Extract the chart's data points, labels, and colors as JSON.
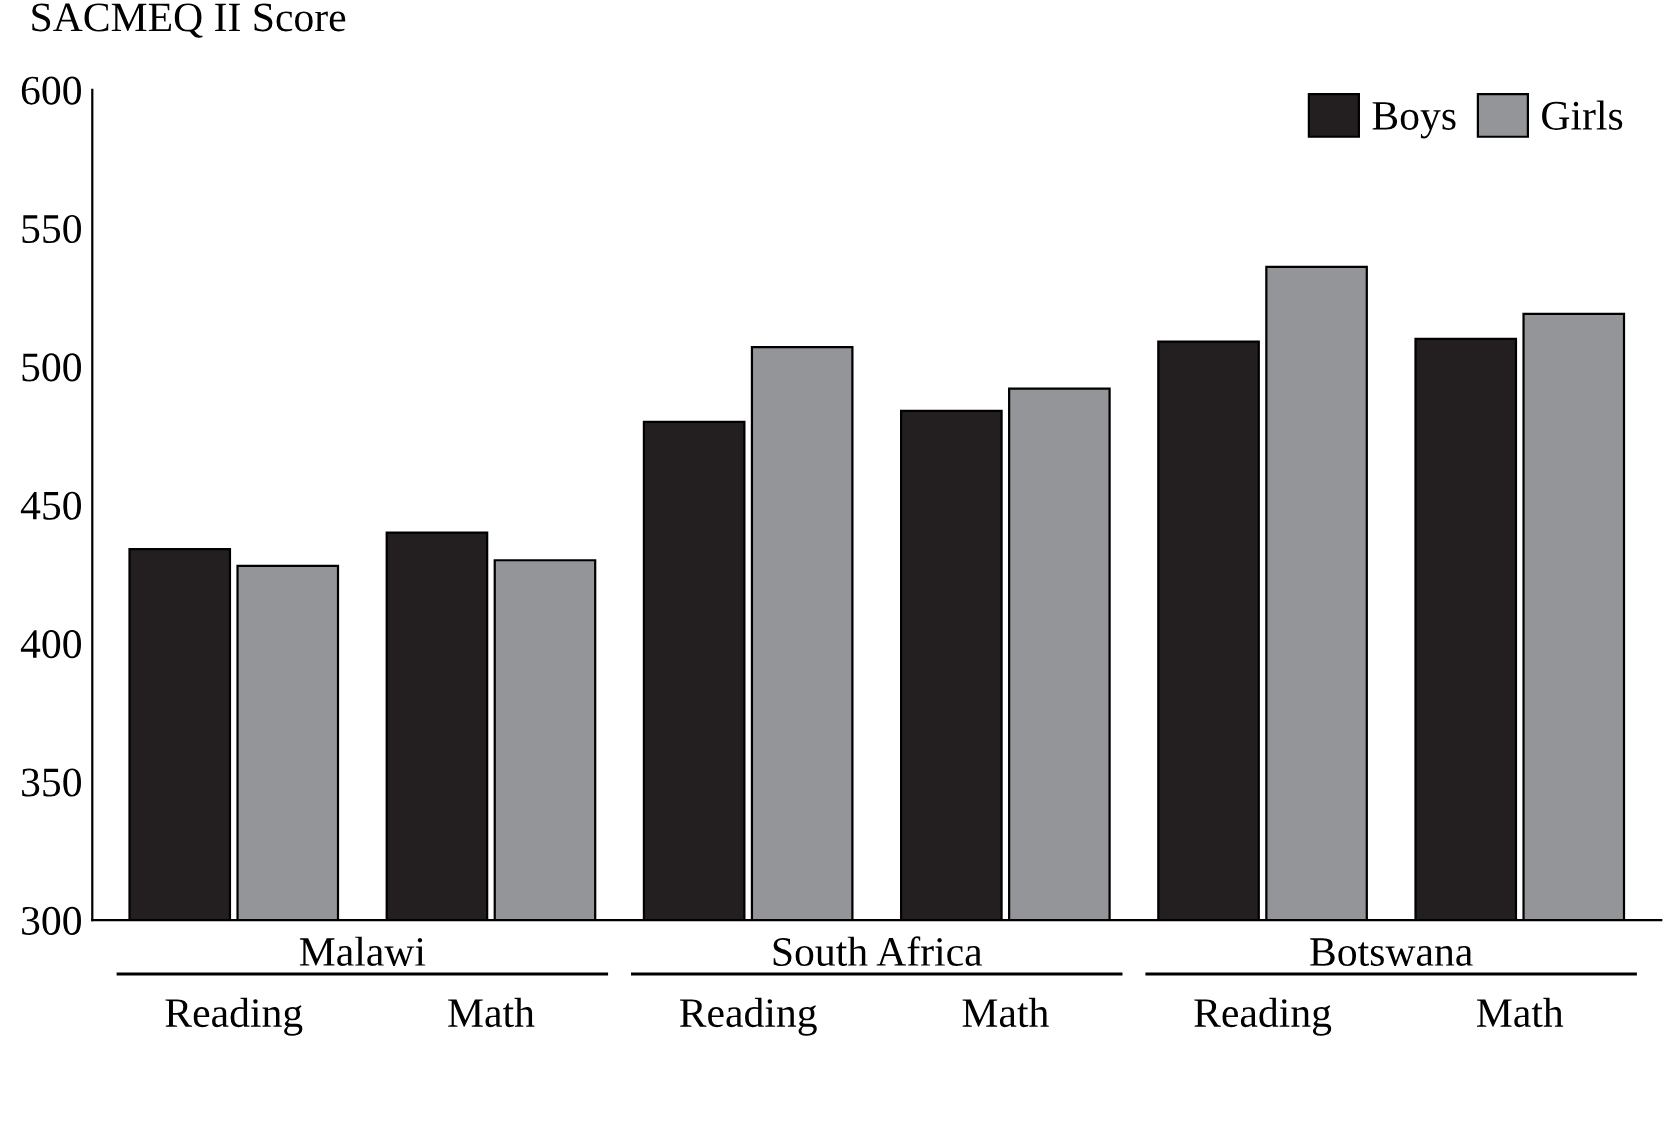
{
  "chart_data": {
    "type": "bar",
    "ylabel": "SACMEQ II Score",
    "categories": [
      "Reading",
      "Math",
      "Reading",
      "Math",
      "Reading",
      "Math"
    ],
    "series": [
      {
        "name": "Boys",
        "color": "#231f20",
        "values": [
          434,
          440,
          480,
          484,
          509,
          510
        ]
      },
      {
        "name": "Girls",
        "color": "#939598",
        "values": [
          428,
          430,
          507,
          492,
          536,
          519
        ]
      }
    ],
    "annotations": [
      "Malawi",
      "South Africa",
      "Botswana"
    ],
    "ylim": [
      300,
      600
    ],
    "yticks": [
      300,
      350,
      400,
      450,
      500,
      550,
      600
    ],
    "legend": "top right",
    "grid": false
  }
}
